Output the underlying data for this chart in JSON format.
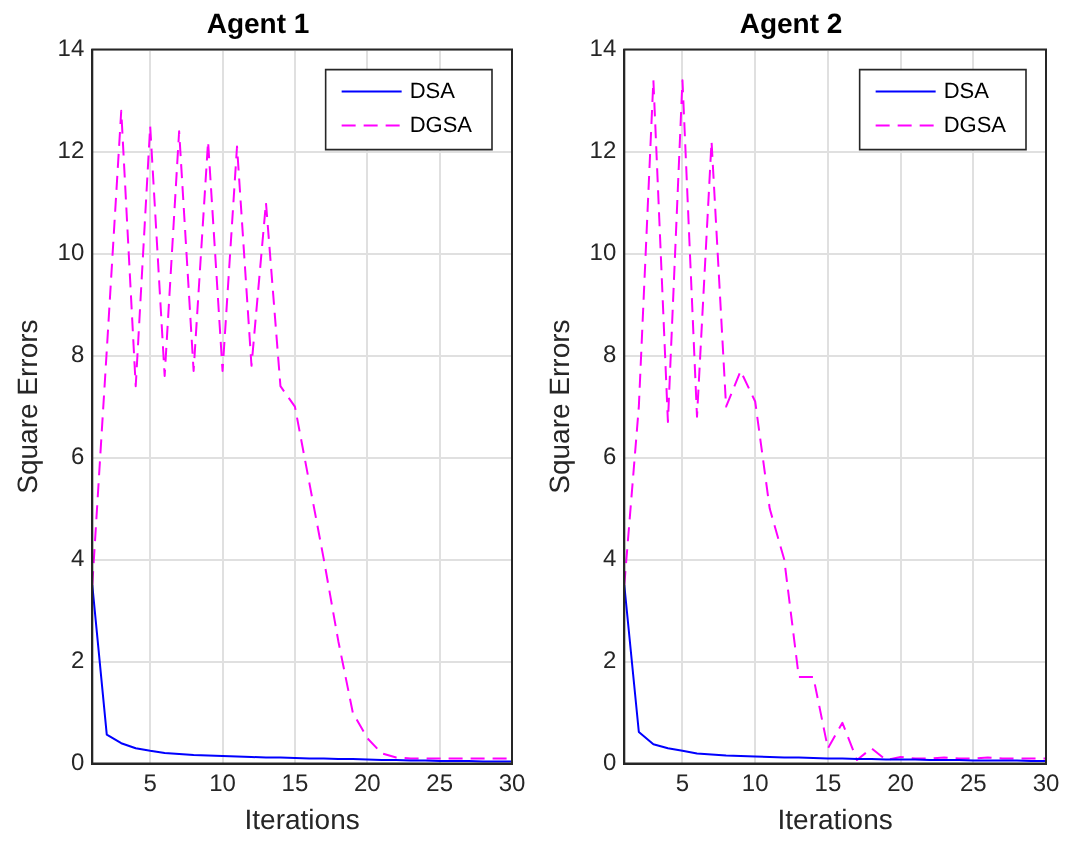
{
  "chart_data": [
    {
      "type": "line",
      "title": "Agent 1",
      "xlabel": "Iterations",
      "ylabel": "Square Errors",
      "x": [
        1,
        2,
        3,
        4,
        5,
        6,
        7,
        8,
        9,
        10,
        11,
        12,
        13,
        14,
        15,
        16,
        17,
        18,
        19,
        20,
        21,
        22,
        23,
        24,
        25,
        26,
        27,
        28,
        29,
        30
      ],
      "xlim": [
        1,
        30
      ],
      "xticks": [
        5,
        10,
        15,
        20,
        25,
        30
      ],
      "ylim": [
        0,
        14
      ],
      "yticks": [
        0,
        2,
        4,
        6,
        8,
        10,
        12,
        14
      ],
      "grid": true,
      "legend": "top right",
      "marker": "none",
      "series": [
        {
          "name": "DSA",
          "color": "#0000ff",
          "line_style": "solid",
          "values": [
            3.5,
            0.57,
            0.4,
            0.3,
            0.25,
            0.21,
            0.19,
            0.17,
            0.16,
            0.15,
            0.14,
            0.13,
            0.12,
            0.12,
            0.11,
            0.1,
            0.1,
            0.09,
            0.09,
            0.08,
            0.07,
            0.07,
            0.06,
            0.06,
            0.05,
            0.05,
            0.05,
            0.04,
            0.04,
            0.04
          ]
        },
        {
          "name": "DGSA",
          "color": "#ff00ff",
          "line_style": "dashed",
          "values": [
            3.5,
            8.1,
            12.8,
            7.4,
            12.5,
            7.6,
            12.4,
            7.7,
            12.2,
            7.7,
            12.1,
            7.8,
            11.0,
            7.4,
            7.0,
            5.5,
            4.0,
            2.4,
            1.0,
            0.5,
            0.2,
            0.12,
            0.1,
            0.1,
            0.1,
            0.1,
            0.1,
            0.1,
            0.1,
            0.1
          ]
        }
      ]
    },
    {
      "type": "line",
      "title": "Agent 2",
      "xlabel": "Iterations",
      "ylabel": "Square Errors",
      "x": [
        1,
        2,
        3,
        4,
        5,
        6,
        7,
        8,
        9,
        10,
        11,
        12,
        13,
        14,
        15,
        16,
        17,
        18,
        19,
        20,
        21,
        22,
        23,
        24,
        25,
        26,
        27,
        28,
        29,
        30
      ],
      "xlim": [
        1,
        30
      ],
      "xticks": [
        5,
        10,
        15,
        20,
        25,
        30
      ],
      "ylim": [
        0,
        14
      ],
      "yticks": [
        0,
        2,
        4,
        6,
        8,
        10,
        12,
        14
      ],
      "grid": true,
      "legend": "top right",
      "marker": "none",
      "series": [
        {
          "name": "DSA",
          "color": "#0000ff",
          "line_style": "solid",
          "values": [
            3.5,
            0.62,
            0.38,
            0.3,
            0.25,
            0.2,
            0.18,
            0.16,
            0.15,
            0.14,
            0.13,
            0.12,
            0.12,
            0.11,
            0.1,
            0.1,
            0.09,
            0.09,
            0.08,
            0.08,
            0.08,
            0.07,
            0.07,
            0.07,
            0.06,
            0.06,
            0.06,
            0.06,
            0.05,
            0.05
          ]
        },
        {
          "name": "DGSA",
          "color": "#ff00ff",
          "line_style": "dashed",
          "values": [
            3.5,
            7.0,
            13.4,
            6.7,
            13.4,
            6.8,
            12.2,
            7.0,
            7.7,
            7.1,
            5.0,
            4.0,
            1.7,
            1.7,
            0.3,
            0.8,
            0.07,
            0.3,
            0.07,
            0.13,
            0.1,
            0.1,
            0.12,
            0.1,
            0.1,
            0.12,
            0.1,
            0.1,
            0.1,
            0.1
          ]
        }
      ]
    }
  ]
}
